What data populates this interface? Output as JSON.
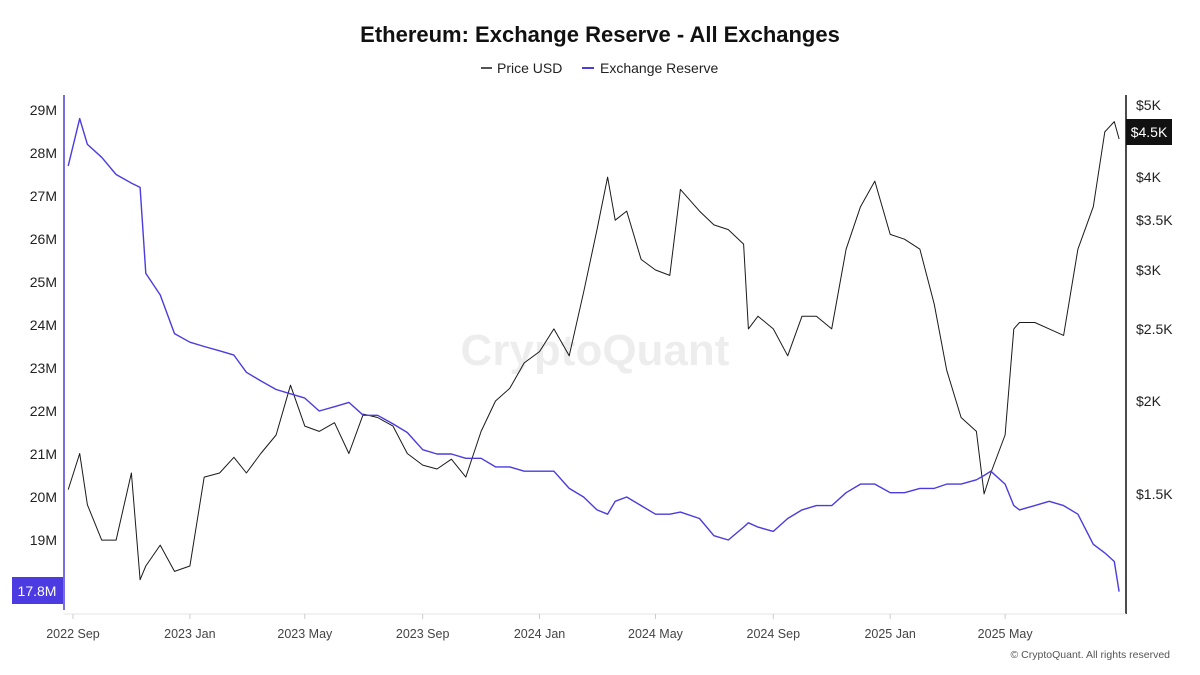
{
  "chart_data": {
    "type": "line",
    "title": "Ethereum: Exchange Reserve - All Exchanges",
    "legend": {
      "placement": "top-center"
    },
    "grid": false,
    "x_ticks": [
      "2022 Sep",
      "2023 Jan",
      "2023 May",
      "2023 Sep",
      "2024 Jan",
      "2024 May",
      "2024 Sep",
      "2025 Jan",
      "2025 May"
    ],
    "left_axis": {
      "ticks": [
        "29M",
        "28M",
        "27M",
        "26M",
        "25M",
        "24M",
        "23M",
        "22M",
        "21M",
        "20M",
        "19M"
      ],
      "tick_values": [
        29,
        28,
        27,
        26,
        25,
        24,
        23,
        22,
        21,
        20,
        19
      ],
      "current_label": "17.8M",
      "unit": "M"
    },
    "right_axis": {
      "scale": "log",
      "ticks": [
        "$5K",
        "$4K",
        "$3.5K",
        "$3K",
        "$2.5K",
        "$2K",
        "$1.5K"
      ],
      "tick_values": [
        5000,
        4000,
        3500,
        3000,
        2500,
        2000,
        1500
      ],
      "current_label": "$4.5K"
    },
    "x": [
      "2022-08-27",
      "2022-09-08",
      "2022-09-16",
      "2022-10-01",
      "2022-10-16",
      "2022-11-01",
      "2022-11-10",
      "2022-11-16",
      "2022-12-01",
      "2022-12-16",
      "2023-01-01",
      "2023-01-16",
      "2023-02-01",
      "2023-02-16",
      "2023-03-01",
      "2023-03-16",
      "2023-04-01",
      "2023-04-16",
      "2023-05-01",
      "2023-05-16",
      "2023-06-01",
      "2023-06-16",
      "2023-07-01",
      "2023-07-16",
      "2023-08-01",
      "2023-08-16",
      "2023-09-01",
      "2023-09-16",
      "2023-10-01",
      "2023-10-16",
      "2023-11-01",
      "2023-11-16",
      "2023-12-01",
      "2023-12-16",
      "2024-01-01",
      "2024-01-16",
      "2024-02-01",
      "2024-02-16",
      "2024-03-01",
      "2024-03-12",
      "2024-03-20",
      "2024-04-01",
      "2024-04-16",
      "2024-05-01",
      "2024-05-16",
      "2024-05-27",
      "2024-06-16",
      "2024-07-01",
      "2024-07-16",
      "2024-08-01",
      "2024-08-06",
      "2024-08-16",
      "2024-09-01",
      "2024-09-16",
      "2024-10-01",
      "2024-10-16",
      "2024-11-01",
      "2024-11-16",
      "2024-12-01",
      "2024-12-16",
      "2025-01-01",
      "2025-01-16",
      "2025-02-01",
      "2025-02-16",
      "2025-03-01",
      "2025-03-16",
      "2025-04-01",
      "2025-04-09",
      "2025-04-16",
      "2025-05-01",
      "2025-05-10",
      "2025-05-16",
      "2025-06-01",
      "2025-06-16",
      "2025-07-01",
      "2025-07-16",
      "2025-08-01",
      "2025-08-13",
      "2025-08-23",
      "2025-08-28"
    ],
    "series": [
      {
        "name": "Price USD",
        "axis": "right",
        "color": "#1a1a1a",
        "values": [
          1520,
          1700,
          1450,
          1300,
          1300,
          1600,
          1150,
          1200,
          1280,
          1180,
          1200,
          1580,
          1600,
          1680,
          1600,
          1700,
          1800,
          2100,
          1850,
          1820,
          1870,
          1700,
          1920,
          1900,
          1850,
          1700,
          1640,
          1620,
          1670,
          1580,
          1820,
          2000,
          2080,
          2250,
          2330,
          2500,
          2300,
          2800,
          3400,
          4000,
          3500,
          3600,
          3100,
          3000,
          2950,
          3850,
          3600,
          3450,
          3400,
          3250,
          2500,
          2600,
          2500,
          2300,
          2600,
          2600,
          2500,
          3200,
          3650,
          3950,
          3350,
          3300,
          3200,
          2700,
          2200,
          1900,
          1820,
          1500,
          1600,
          1800,
          2500,
          2550,
          2550,
          2500,
          2450,
          3200,
          3650,
          4600,
          4750,
          4500
        ]
      },
      {
        "name": "Exchange Reserve",
        "axis": "left",
        "color": "#4b3be0",
        "values": [
          27.7,
          28.8,
          28.2,
          27.9,
          27.5,
          27.3,
          27.2,
          25.2,
          24.7,
          23.8,
          23.6,
          23.5,
          23.4,
          23.3,
          22.9,
          22.7,
          22.5,
          22.4,
          22.3,
          22.0,
          22.1,
          22.2,
          21.9,
          21.9,
          21.7,
          21.5,
          21.1,
          21.0,
          21.0,
          20.9,
          20.9,
          20.7,
          20.7,
          20.6,
          20.6,
          20.6,
          20.2,
          20.0,
          19.7,
          19.6,
          19.9,
          20.0,
          19.8,
          19.6,
          19.6,
          19.65,
          19.5,
          19.1,
          19.0,
          19.3,
          19.4,
          19.3,
          19.2,
          19.5,
          19.7,
          19.8,
          19.8,
          20.1,
          20.3,
          20.3,
          20.1,
          20.1,
          20.2,
          20.2,
          20.3,
          20.3,
          20.4,
          20.5,
          20.6,
          20.3,
          19.8,
          19.7,
          19.8,
          19.9,
          19.8,
          19.6,
          18.9,
          18.7,
          18.5,
          17.8
        ]
      }
    ]
  },
  "watermark": "CryptoQuant",
  "copyright": "© CryptoQuant. All rights reserved"
}
